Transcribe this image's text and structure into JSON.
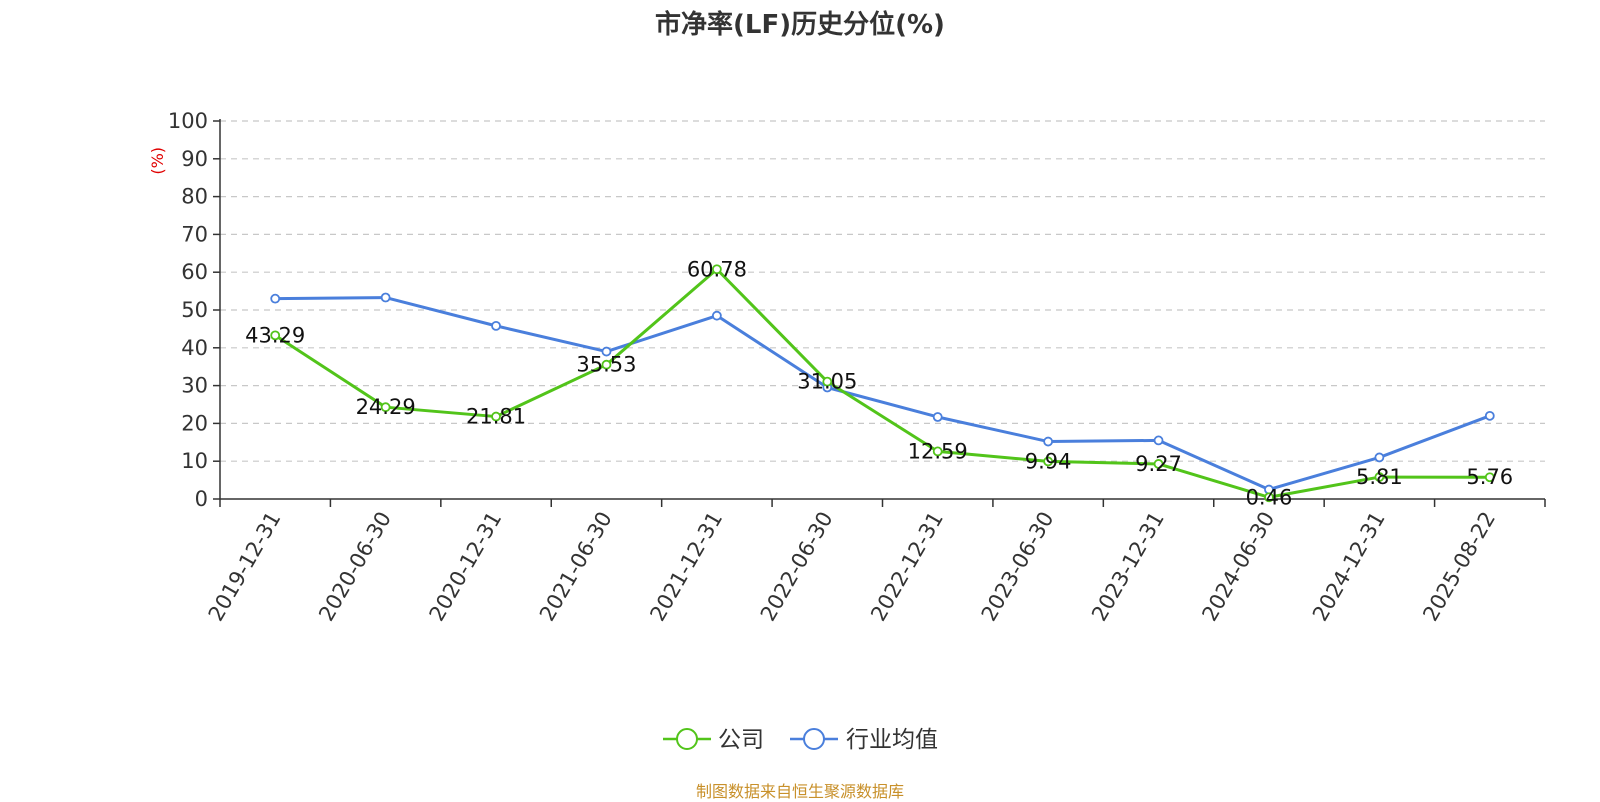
{
  "chart_data": {
    "type": "line",
    "title": "市净率(LF)历史分位(%)",
    "ylabel": "(%)",
    "xlabel": "",
    "ylim": [
      0,
      100
    ],
    "yticks": [
      0,
      10,
      20,
      30,
      40,
      50,
      60,
      70,
      80,
      90,
      100
    ],
    "grid": true,
    "legend_position": "bottom",
    "categories": [
      "2019-12-31",
      "2020-06-30",
      "2020-12-31",
      "2021-06-30",
      "2021-12-31",
      "2022-06-30",
      "2022-12-31",
      "2023-06-30",
      "2023-12-31",
      "2024-06-30",
      "2024-12-31",
      "2025-08-22"
    ],
    "series": [
      {
        "name": "公司",
        "color": "#52c41a",
        "values": [
          43.29,
          24.29,
          21.81,
          35.53,
          60.78,
          31.05,
          12.59,
          9.94,
          9.27,
          0.46,
          5.81,
          5.76
        ],
        "labels": [
          "43.29",
          "24.29",
          "21.81",
          "35.53",
          "60.78",
          "31.05",
          "12.59",
          "9.94",
          "9.27",
          "0.46",
          "5.81",
          "5.76"
        ]
      },
      {
        "name": "行业均值",
        "color": "#4a7fdc",
        "values": [
          53,
          53.3,
          45.8,
          39,
          48.5,
          29.5,
          21.7,
          15.2,
          15.5,
          2.5,
          11,
          22
        ]
      }
    ]
  },
  "footer": "制图数据来自恒生聚源数据库",
  "ylabel_color": "#e00000",
  "footer_color": "#c8902a"
}
